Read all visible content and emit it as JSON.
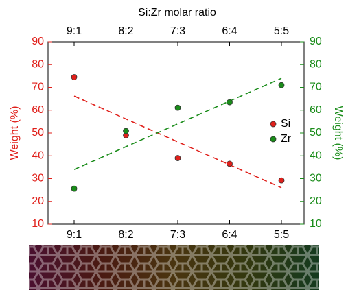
{
  "chart_data": {
    "type": "scatter",
    "title": "Si:Zr molar ratio",
    "ylabel": "Weight (%)",
    "y2label": "Weight (%)",
    "categories": [
      "9:1",
      "8:2",
      "7:3",
      "6:4",
      "5:5"
    ],
    "series": [
      {
        "name": "Si",
        "color": "#e0201b",
        "values": [
          74.5,
          49,
          39,
          36.5,
          29.2
        ],
        "trend_line": [
          66.2,
          26
        ]
      },
      {
        "name": "Zr",
        "color": "#1a8c1a",
        "axis": "y2",
        "values": [
          25.6,
          50.9,
          61.1,
          63.5,
          71
        ],
        "trend_line": [
          34,
          74
        ]
      }
    ],
    "ylim": [
      10,
      90
    ],
    "yticks": [
      10,
      20,
      30,
      40,
      50,
      60,
      70,
      80,
      90
    ],
    "y2lim": [
      10,
      90
    ],
    "y2ticks": [
      10,
      20,
      30,
      40,
      50,
      60,
      70,
      80,
      90
    ],
    "ycolor": "#e0201b",
    "y2color": "#1a8c1a",
    "legend": "right"
  }
}
